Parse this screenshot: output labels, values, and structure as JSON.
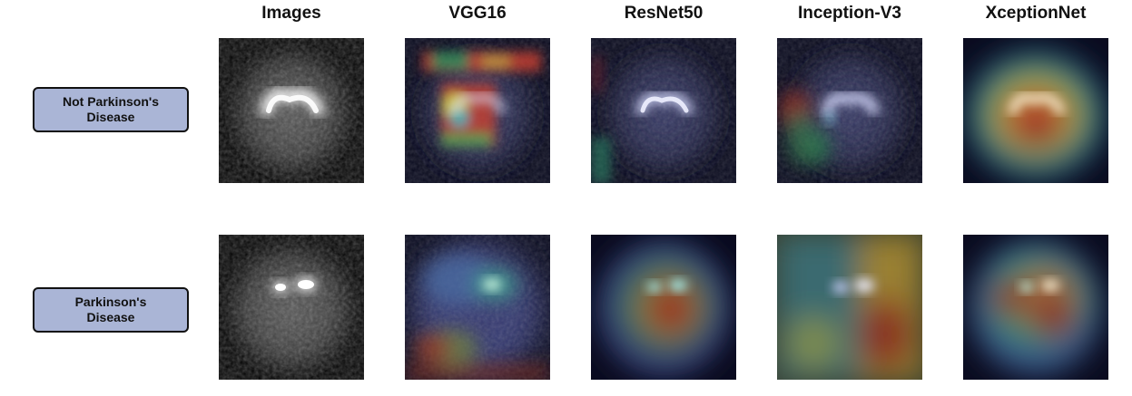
{
  "columns": [
    "Images",
    "VGG16",
    "ResNet50",
    "Inception-V3",
    "XceptionNet"
  ],
  "rows": [
    {
      "label": "Not Parkinson's\nDisease"
    },
    {
      "label": "Parkinson's\nDisease"
    }
  ]
}
